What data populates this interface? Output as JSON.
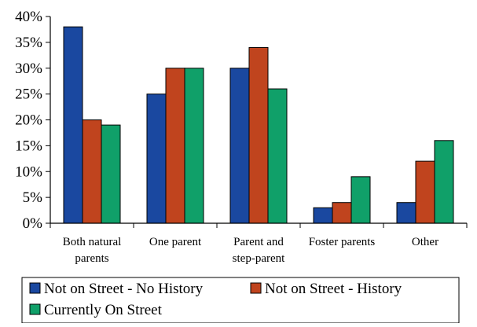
{
  "chart_data": {
    "type": "bar",
    "categories": [
      [
        "Both natural",
        "parents"
      ],
      [
        "One parent"
      ],
      [
        "Parent and",
        "step-parent"
      ],
      [
        "Foster parents"
      ],
      [
        "Other"
      ]
    ],
    "series": [
      {
        "name": "Not on Street - No History",
        "color": "#1a48a0",
        "values": [
          38,
          25,
          30,
          3,
          4
        ]
      },
      {
        "name": "Not on Street - History",
        "color": "#c0441e",
        "values": [
          20,
          30,
          34,
          4,
          12
        ]
      },
      {
        "name": "Currently On Street",
        "color": "#10a069",
        "values": [
          19,
          30,
          26,
          9,
          16
        ]
      }
    ],
    "ylim": [
      0,
      40
    ],
    "yticks": [
      "0%",
      "5%",
      "10%",
      "15%",
      "20%",
      "25%",
      "30%",
      "35%",
      "40%"
    ],
    "grid": false,
    "legend_position": "bottom"
  }
}
